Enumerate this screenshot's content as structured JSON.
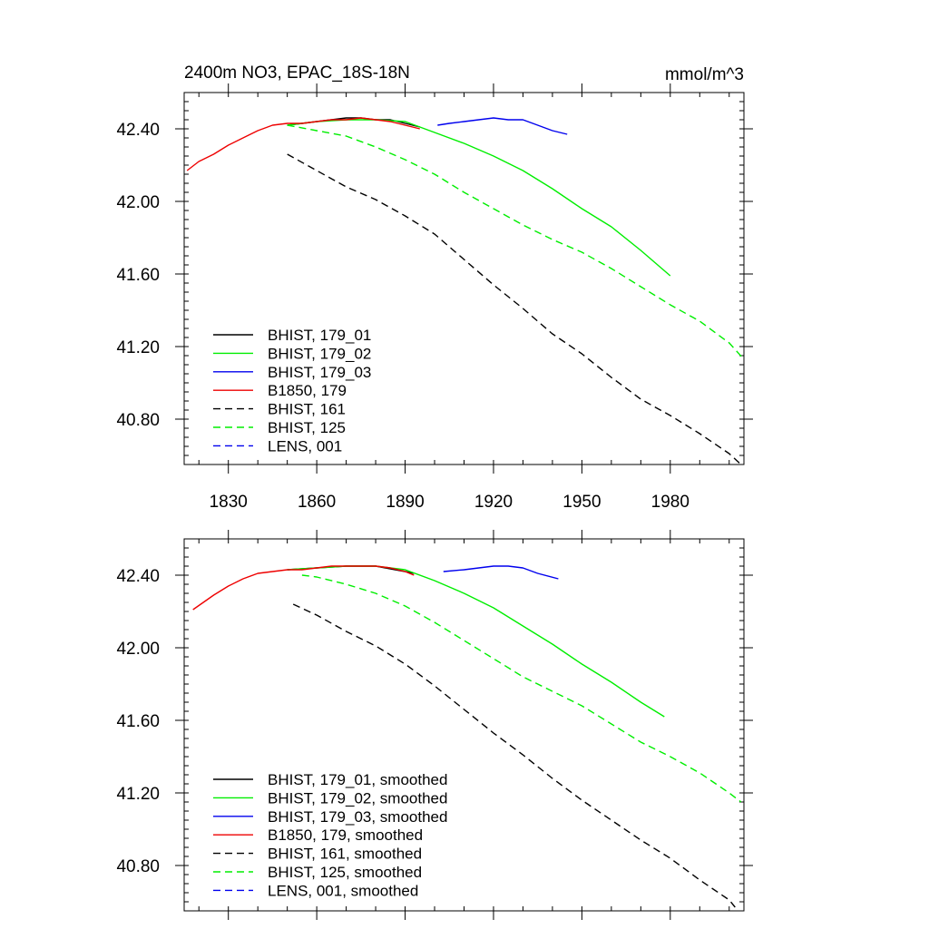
{
  "chart_data": [
    {
      "type": "line",
      "title": "2400m NO3, EPAC_18S-18N",
      "units": "mmol/m^3",
      "xlabel": "",
      "ylabel": "",
      "xlim": [
        1815,
        2005
      ],
      "ylim": [
        40.55,
        42.6
      ],
      "xticks": [
        1830,
        1860,
        1890,
        1920,
        1950,
        1980
      ],
      "xtick_labels": [
        "1830",
        "1860",
        "1890",
        "1920",
        "1950",
        "1980"
      ],
      "yticks": [
        40.8,
        41.2,
        41.6,
        42.0,
        42.4
      ],
      "ytick_labels": [
        "40.80",
        "41.20",
        "41.60",
        "42.00",
        "42.40"
      ],
      "show_xtick_labels": true,
      "grid": false,
      "legend": "bottom-left",
      "series": [
        {
          "name": "BHIST, 179_01",
          "color": "#000000",
          "dash": "solid",
          "x": [
            1850,
            1855,
            1860,
            1865,
            1870,
            1875,
            1880,
            1885,
            1890,
            1895
          ],
          "y": [
            42.42,
            42.43,
            42.44,
            42.45,
            42.46,
            42.46,
            42.45,
            42.45,
            42.43,
            42.41
          ]
        },
        {
          "name": "BHIST, 179_02",
          "color": "#00ee00",
          "dash": "solid",
          "x": [
            1850,
            1860,
            1870,
            1880,
            1890,
            1900,
            1910,
            1920,
            1930,
            1940,
            1950,
            1960,
            1970,
            1980
          ],
          "y": [
            42.42,
            42.44,
            42.45,
            42.45,
            42.44,
            42.38,
            42.32,
            42.25,
            42.17,
            42.07,
            41.96,
            41.86,
            41.73,
            41.59
          ]
        },
        {
          "name": "BHIST, 179_03",
          "color": "#0000ee",
          "dash": "solid",
          "x": [
            1901,
            1905,
            1910,
            1915,
            1920,
            1925,
            1930,
            1935,
            1940,
            1945
          ],
          "y": [
            42.42,
            42.43,
            42.44,
            42.45,
            42.46,
            42.45,
            42.45,
            42.42,
            42.39,
            42.37
          ]
        },
        {
          "name": "B1850, 179",
          "color": "#ee0000",
          "dash": "solid",
          "x": [
            1816,
            1820,
            1825,
            1830,
            1835,
            1840,
            1845,
            1850,
            1855,
            1860,
            1865,
            1870,
            1875,
            1880,
            1885,
            1890,
            1895
          ],
          "y": [
            42.17,
            42.22,
            42.26,
            42.31,
            42.35,
            42.39,
            42.42,
            42.43,
            42.43,
            42.44,
            42.45,
            42.45,
            42.46,
            42.45,
            42.44,
            42.42,
            42.4
          ]
        },
        {
          "name": "BHIST, 161",
          "color": "#000000",
          "dash": "dashed",
          "x": [
            1850,
            1860,
            1870,
            1880,
            1890,
            1900,
            1910,
            1920,
            1930,
            1940,
            1950,
            1960,
            1970,
            1980,
            1990,
            2000,
            2004
          ],
          "y": [
            42.26,
            42.17,
            42.08,
            42.01,
            41.92,
            41.82,
            41.68,
            41.54,
            41.41,
            41.27,
            41.16,
            41.03,
            40.91,
            40.82,
            40.72,
            40.61,
            40.55
          ]
        },
        {
          "name": "BHIST, 125",
          "color": "#00ee00",
          "dash": "dashed",
          "x": [
            1850,
            1860,
            1870,
            1880,
            1890,
            1900,
            1910,
            1920,
            1930,
            1940,
            1950,
            1960,
            1970,
            1980,
            1990,
            2000,
            2005
          ],
          "y": [
            42.42,
            42.39,
            42.36,
            42.3,
            42.23,
            42.15,
            42.05,
            41.96,
            41.87,
            41.79,
            41.72,
            41.63,
            41.53,
            41.43,
            41.34,
            41.22,
            41.13
          ]
        },
        {
          "name": "LENS, 001",
          "color": "#0000ee",
          "dash": "dashed",
          "x": [],
          "y": []
        }
      ]
    },
    {
      "type": "line",
      "title": "",
      "units": "",
      "xlabel": "",
      "ylabel": "",
      "xlim": [
        1815,
        2005
      ],
      "ylim": [
        40.55,
        42.6
      ],
      "xticks": [
        1830,
        1860,
        1890,
        1920,
        1950,
        1980
      ],
      "yticks": [
        40.8,
        41.2,
        41.6,
        42.0,
        42.4
      ],
      "ytick_labels": [
        "40.80",
        "41.20",
        "41.60",
        "42.00",
        "42.40"
      ],
      "show_xtick_labels": false,
      "grid": false,
      "legend": "bottom-left",
      "series": [
        {
          "name": "BHIST, 179_01, smoothed",
          "color": "#000000",
          "dash": "solid",
          "x": [
            1850,
            1860,
            1870,
            1880,
            1890,
            1893
          ],
          "y": [
            42.43,
            42.44,
            42.45,
            42.45,
            42.42,
            42.41
          ]
        },
        {
          "name": "BHIST, 179_02, smoothed",
          "color": "#00ee00",
          "dash": "solid",
          "x": [
            1850,
            1860,
            1870,
            1880,
            1890,
            1900,
            1910,
            1920,
            1930,
            1940,
            1950,
            1960,
            1970,
            1978
          ],
          "y": [
            42.43,
            42.44,
            42.45,
            42.45,
            42.43,
            42.37,
            42.3,
            42.22,
            42.12,
            42.02,
            41.91,
            41.81,
            41.7,
            41.62
          ]
        },
        {
          "name": "BHIST, 179_03, smoothed",
          "color": "#0000ee",
          "dash": "solid",
          "x": [
            1903,
            1910,
            1915,
            1920,
            1925,
            1930,
            1935,
            1942
          ],
          "y": [
            42.42,
            42.43,
            42.44,
            42.45,
            42.45,
            42.44,
            42.41,
            42.38
          ]
        },
        {
          "name": "B1850, 179, smoothed",
          "color": "#ee0000",
          "dash": "solid",
          "x": [
            1818,
            1825,
            1830,
            1835,
            1840,
            1845,
            1850,
            1855,
            1860,
            1865,
            1870,
            1875,
            1880,
            1885,
            1890,
            1893
          ],
          "y": [
            42.21,
            42.29,
            42.34,
            42.38,
            42.41,
            42.42,
            42.43,
            42.43,
            42.44,
            42.45,
            42.45,
            42.45,
            42.45,
            42.44,
            42.42,
            42.4
          ]
        },
        {
          "name": "BHIST, 161, smoothed",
          "color": "#000000",
          "dash": "dashed",
          "x": [
            1852,
            1860,
            1870,
            1880,
            1890,
            1900,
            1910,
            1920,
            1930,
            1940,
            1950,
            1960,
            1970,
            1980,
            1990,
            2000,
            2002
          ],
          "y": [
            42.24,
            42.18,
            42.09,
            42.01,
            41.91,
            41.79,
            41.66,
            41.53,
            41.41,
            41.28,
            41.16,
            41.05,
            40.94,
            40.84,
            40.72,
            40.61,
            40.57
          ]
        },
        {
          "name": "BHIST, 125, smoothed",
          "color": "#00ee00",
          "dash": "dashed",
          "x": [
            1855,
            1860,
            1870,
            1880,
            1890,
            1900,
            1910,
            1920,
            1930,
            1940,
            1950,
            1960,
            1970,
            1980,
            1990,
            2000,
            2004
          ],
          "y": [
            42.4,
            42.39,
            42.35,
            42.3,
            42.23,
            42.14,
            42.04,
            41.94,
            41.84,
            41.76,
            41.68,
            41.58,
            41.48,
            41.4,
            41.31,
            41.2,
            41.15
          ]
        },
        {
          "name": "LENS, 001, smoothed",
          "color": "#0000ee",
          "dash": "dashed",
          "x": [],
          "y": []
        }
      ]
    }
  ]
}
